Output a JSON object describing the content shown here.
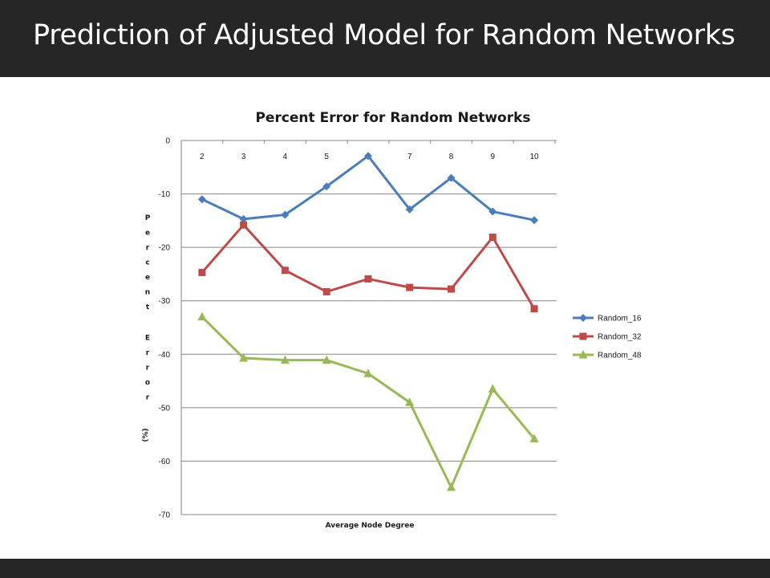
{
  "slide": {
    "title": "Prediction of Adjusted Model for Random Networks"
  },
  "colors": {
    "header_bg": "#262626",
    "footer_bg": "#262626",
    "series": [
      "#4a7ebb",
      "#be4b48",
      "#98b954"
    ]
  },
  "chart_data": {
    "type": "line",
    "title": "Percent Error for Random Networks",
    "xlabel": "Average Node Degree",
    "ylabel": "Percent Error (%)",
    "categories": [
      "2",
      "3",
      "4",
      "5",
      "6",
      "7",
      "8",
      "9",
      "10"
    ],
    "ylim": [
      -70,
      0
    ],
    "yticks": [
      0,
      -10,
      -20,
      -30,
      -40,
      -50,
      -60,
      -70
    ],
    "grid": true,
    "legend_position": "right",
    "series": [
      {
        "name": "Random_16",
        "marker": "diamond",
        "values": [
          -11,
          -14.7,
          -13.9,
          -8.6,
          -2.9,
          -12.9,
          -7,
          -13.3,
          -14.9
        ]
      },
      {
        "name": "Random_32",
        "marker": "square",
        "values": [
          -24.7,
          -15.8,
          -24.3,
          -28.3,
          -25.9,
          -27.5,
          -27.8,
          -18.1,
          -31.5
        ]
      },
      {
        "name": "Random_48",
        "marker": "triangle",
        "values": [
          -33,
          -40.7,
          -41.1,
          -41.1,
          -43.6,
          -49,
          -64.9,
          -46.5,
          -55.8
        ]
      }
    ]
  }
}
